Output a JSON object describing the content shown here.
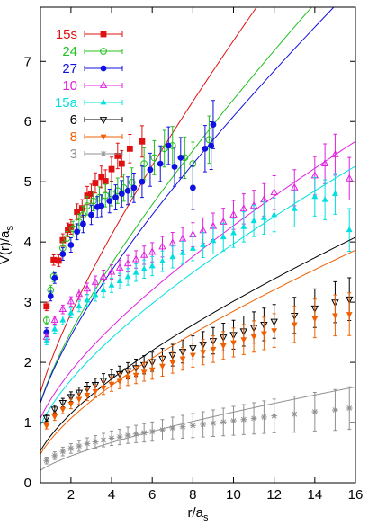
{
  "chart_data": {
    "type": "scatter",
    "title": "",
    "xlabel": "r/a_s",
    "ylabel": "V(r)/a_s",
    "xlim": [
      0.5,
      16
    ],
    "ylim": [
      0,
      7.9
    ],
    "x_ticks": [
      2,
      4,
      6,
      8,
      10,
      12,
      14,
      16
    ],
    "y_ticks": [
      0,
      1,
      2,
      3,
      4,
      5,
      6,
      7
    ],
    "grid": false,
    "legend_position": "top-left",
    "series": [
      {
        "name": "15s",
        "color": "#e01010",
        "marker": "square-filled",
        "fit": {
          "a": 0.5,
          "b": 1.2,
          "c": 0.305
        },
        "points": [
          [
            0.8,
            2.93
          ],
          [
            1.15,
            3.7
          ],
          [
            1.4,
            3.69
          ],
          [
            1.6,
            4.03
          ],
          [
            1.85,
            4.2
          ],
          [
            2.0,
            4.25
          ],
          [
            2.3,
            4.5
          ],
          [
            2.55,
            4.56
          ],
          [
            2.8,
            4.77
          ],
          [
            3.0,
            4.8
          ],
          [
            3.2,
            4.98
          ],
          [
            3.5,
            5.08
          ],
          [
            3.7,
            5.01
          ],
          [
            4.0,
            5.21
          ],
          [
            4.3,
            5.43
          ],
          [
            4.5,
            5.3
          ],
          [
            4.9,
            5.55
          ],
          [
            5.5,
            5.67
          ]
        ]
      },
      {
        "name": "24",
        "color": "#20c020",
        "marker": "circle-open",
        "fit": {
          "a": 0.41,
          "b": 1.15,
          "c": 0.232
        },
        "points": [
          [
            0.8,
            2.7
          ],
          [
            1.0,
            3.2
          ],
          [
            1.15,
            3.43
          ],
          [
            1.6,
            3.9
          ],
          [
            1.8,
            4.06
          ],
          [
            2.1,
            4.22
          ],
          [
            2.4,
            4.33
          ],
          [
            2.6,
            4.45
          ],
          [
            2.8,
            4.6
          ],
          [
            3.1,
            4.68
          ],
          [
            3.4,
            4.74
          ],
          [
            3.7,
            4.77
          ],
          [
            4.0,
            4.8
          ],
          [
            4.3,
            4.85
          ],
          [
            4.6,
            4.9
          ],
          [
            5.0,
            4.99
          ],
          [
            5.6,
            5.3
          ],
          [
            6.1,
            5.4
          ],
          [
            6.6,
            5.55
          ],
          [
            7.0,
            5.6
          ],
          [
            7.6,
            5.4
          ],
          [
            8.0,
            5.3
          ],
          [
            8.8,
            5.7
          ]
        ]
      },
      {
        "name": "27",
        "color": "#1010e0",
        "marker": "circle-filled",
        "fit": {
          "a": 0.41,
          "b": 1.15,
          "c": 0.204
        },
        "points": [
          [
            0.8,
            2.5
          ],
          [
            1.0,
            3.1
          ],
          [
            1.2,
            3.4
          ],
          [
            1.6,
            3.8
          ],
          [
            2.0,
            3.95
          ],
          [
            2.3,
            4.17
          ],
          [
            2.6,
            4.3
          ],
          [
            3.0,
            4.45
          ],
          [
            3.3,
            4.58
          ],
          [
            3.5,
            4.6
          ],
          [
            3.9,
            4.68
          ],
          [
            4.2,
            4.74
          ],
          [
            4.5,
            4.8
          ],
          [
            4.8,
            4.85
          ],
          [
            5.1,
            4.9
          ],
          [
            5.5,
            5.0
          ],
          [
            5.9,
            5.2
          ],
          [
            6.4,
            5.3
          ],
          [
            6.8,
            5.6
          ],
          [
            7.1,
            5.25
          ],
          [
            7.4,
            5.4
          ],
          [
            8.0,
            4.9
          ],
          [
            8.6,
            5.55
          ],
          [
            8.9,
            5.6
          ],
          [
            9.0,
            5.95
          ]
        ]
      },
      {
        "name": "10",
        "color": "#e020e0",
        "marker": "triangle-up-open",
        "fit": {
          "a": 0.4,
          "b": 0.87,
          "c": 0.112
        },
        "points": [
          [
            0.8,
            2.42
          ],
          [
            1.2,
            2.7
          ],
          [
            1.6,
            2.88
          ],
          [
            2.0,
            3.01
          ],
          [
            2.4,
            3.13
          ],
          [
            2.8,
            3.22
          ],
          [
            3.2,
            3.33
          ],
          [
            3.6,
            3.42
          ],
          [
            4.0,
            3.5
          ],
          [
            4.4,
            3.57
          ],
          [
            4.8,
            3.64
          ],
          [
            5.2,
            3.71
          ],
          [
            5.6,
            3.78
          ],
          [
            6.0,
            3.83
          ],
          [
            6.5,
            3.92
          ],
          [
            7.0,
            3.98
          ],
          [
            7.5,
            4.05
          ],
          [
            8.0,
            4.12
          ],
          [
            8.5,
            4.19
          ],
          [
            9.0,
            4.26
          ],
          [
            9.5,
            4.33
          ],
          [
            10.0,
            4.45
          ],
          [
            10.5,
            4.55
          ],
          [
            11.0,
            4.6
          ],
          [
            11.5,
            4.7
          ],
          [
            12.0,
            4.82
          ],
          [
            13.0,
            4.9
          ],
          [
            14.0,
            5.1
          ],
          [
            14.5,
            5.3
          ],
          [
            15.0,
            5.45
          ],
          [
            15.7,
            5.05
          ]
        ]
      },
      {
        "name": "15a",
        "color": "#00e0e0",
        "marker": "triangle-up-filled",
        "fit": {
          "a": 0.3,
          "b": 0.86,
          "c": 0.095
        },
        "points": [
          [
            0.8,
            2.35
          ],
          [
            1.2,
            2.55
          ],
          [
            1.6,
            2.7
          ],
          [
            2.0,
            2.82
          ],
          [
            2.4,
            2.93
          ],
          [
            2.8,
            3.03
          ],
          [
            3.2,
            3.12
          ],
          [
            3.6,
            3.2
          ],
          [
            4.0,
            3.28
          ],
          [
            4.4,
            3.35
          ],
          [
            4.8,
            3.42
          ],
          [
            5.2,
            3.49
          ],
          [
            5.6,
            3.55
          ],
          [
            6.0,
            3.6
          ],
          [
            6.5,
            3.68
          ],
          [
            7.0,
            3.75
          ],
          [
            7.5,
            3.82
          ],
          [
            8.0,
            3.89
          ],
          [
            8.5,
            3.95
          ],
          [
            9.0,
            4.02
          ],
          [
            9.5,
            4.08
          ],
          [
            10.0,
            4.15
          ],
          [
            10.5,
            4.25
          ],
          [
            11.0,
            4.35
          ],
          [
            11.5,
            4.4
          ],
          [
            12.0,
            4.45
          ],
          [
            13.0,
            4.55
          ],
          [
            14.0,
            4.75
          ],
          [
            14.5,
            4.7
          ],
          [
            15.0,
            4.8
          ],
          [
            15.7,
            4.2
          ]
        ]
      },
      {
        "name": "6",
        "color": "#000000",
        "marker": "triangle-down-open",
        "fit": {
          "a": -0.01,
          "b": 0.71,
          "c": 0.078
        },
        "points": [
          [
            0.8,
            1.08
          ],
          [
            1.2,
            1.22
          ],
          [
            1.6,
            1.33
          ],
          [
            2.0,
            1.43
          ],
          [
            2.4,
            1.5
          ],
          [
            2.8,
            1.57
          ],
          [
            3.2,
            1.63
          ],
          [
            3.6,
            1.7
          ],
          [
            4.0,
            1.76
          ],
          [
            4.4,
            1.81
          ],
          [
            4.8,
            1.86
          ],
          [
            5.2,
            1.91
          ],
          [
            5.6,
            1.96
          ],
          [
            6.0,
            2.01
          ],
          [
            6.5,
            2.06
          ],
          [
            7.0,
            2.12
          ],
          [
            7.5,
            2.18
          ],
          [
            8.0,
            2.24
          ],
          [
            8.5,
            2.3
          ],
          [
            9.0,
            2.36
          ],
          [
            9.5,
            2.42
          ],
          [
            10.0,
            2.46
          ],
          [
            10.5,
            2.52
          ],
          [
            11.0,
            2.58
          ],
          [
            11.5,
            2.63
          ],
          [
            12.0,
            2.68
          ],
          [
            13.0,
            2.78
          ],
          [
            14.0,
            2.9
          ],
          [
            15.0,
            3.0
          ],
          [
            15.7,
            3.05
          ]
        ]
      },
      {
        "name": "8",
        "color": "#f06000",
        "marker": "triangle-down-filled",
        "fit": {
          "a": -0.04,
          "b": 0.68,
          "c": 0.074
        },
        "points": [
          [
            0.8,
            0.95
          ],
          [
            1.2,
            1.1
          ],
          [
            1.6,
            1.22
          ],
          [
            2.0,
            1.31
          ],
          [
            2.4,
            1.39
          ],
          [
            2.8,
            1.46
          ],
          [
            3.2,
            1.52
          ],
          [
            3.6,
            1.58
          ],
          [
            4.0,
            1.64
          ],
          [
            4.4,
            1.69
          ],
          [
            4.8,
            1.75
          ],
          [
            5.2,
            1.79
          ],
          [
            5.6,
            1.84
          ],
          [
            6.0,
            1.88
          ],
          [
            6.5,
            1.94
          ],
          [
            7.0,
            2.0
          ],
          [
            7.5,
            2.06
          ],
          [
            8.0,
            2.12
          ],
          [
            8.5,
            2.17
          ],
          [
            9.0,
            2.22
          ],
          [
            9.5,
            2.28
          ],
          [
            10.0,
            2.33
          ],
          [
            10.5,
            2.38
          ],
          [
            11.0,
            2.43
          ],
          [
            11.5,
            2.48
          ],
          [
            12.0,
            2.53
          ],
          [
            13.0,
            2.63
          ],
          [
            14.0,
            2.73
          ],
          [
            15.0,
            2.78
          ],
          [
            15.7,
            2.8
          ]
        ]
      },
      {
        "name": "3",
        "color": "#909090",
        "marker": "star",
        "fit": {
          "a": 0.0,
          "b": 0.27,
          "c": 0.032
        },
        "points": [
          [
            0.8,
            0.37
          ],
          [
            1.2,
            0.45
          ],
          [
            1.6,
            0.52
          ],
          [
            2.0,
            0.57
          ],
          [
            2.4,
            0.61
          ],
          [
            2.8,
            0.65
          ],
          [
            3.2,
            0.68
          ],
          [
            3.6,
            0.71
          ],
          [
            4.0,
            0.74
          ],
          [
            4.4,
            0.76
          ],
          [
            4.8,
            0.79
          ],
          [
            5.2,
            0.81
          ],
          [
            5.6,
            0.83
          ],
          [
            6.0,
            0.85
          ],
          [
            6.5,
            0.88
          ],
          [
            7.0,
            0.91
          ],
          [
            7.5,
            0.93
          ],
          [
            8.0,
            0.95
          ],
          [
            8.5,
            0.97
          ],
          [
            9.0,
            0.99
          ],
          [
            9.5,
            1.01
          ],
          [
            10.0,
            1.03
          ],
          [
            10.5,
            1.05
          ],
          [
            11.0,
            1.07
          ],
          [
            11.5,
            1.09
          ],
          [
            12.0,
            1.11
          ],
          [
            13.0,
            1.14
          ],
          [
            14.0,
            1.18
          ],
          [
            15.0,
            1.21
          ],
          [
            15.7,
            1.24
          ]
        ]
      }
    ]
  }
}
